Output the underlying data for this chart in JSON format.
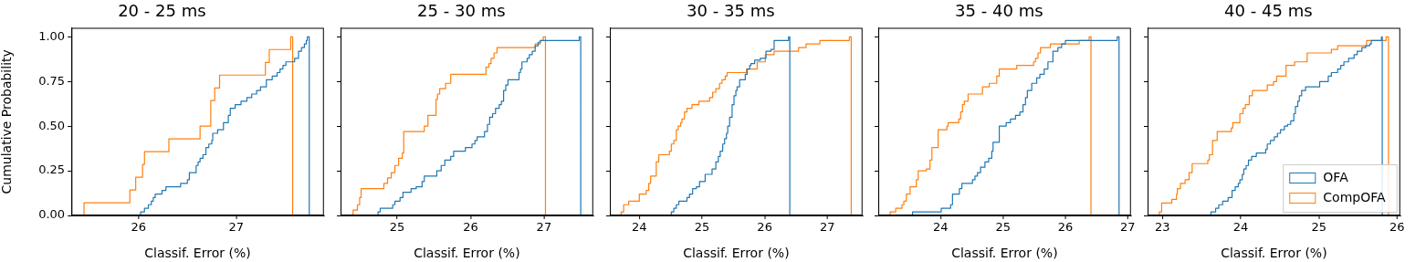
{
  "chart_data": [
    {
      "type": "step",
      "title": "20 - 25 ms",
      "xlabel": "Classif. Error (%)",
      "ylabel": "Cumulative Probability",
      "xlim": [
        25.31,
        27.9
      ],
      "xticks": [
        26,
        27
      ],
      "ylim": [
        0,
        1.05
      ],
      "yticks": [
        {
          "value": 0,
          "label": "0.00"
        },
        {
          "value": 0.25,
          "label": "0.25"
        },
        {
          "value": 0.5,
          "label": "0.50"
        },
        {
          "value": 0.75,
          "label": "0.75"
        },
        {
          "value": 1,
          "label": "1.00"
        }
      ],
      "grid": false,
      "series": [
        {
          "color": "#1f77b4",
          "x": [
            26.02,
            26.02,
            26.06,
            26.1,
            26.13,
            26.15,
            26.17,
            26.24,
            26.28,
            26.43,
            26.5,
            26.52,
            26.59,
            26.61,
            26.63,
            26.66,
            26.69,
            26.72,
            26.75,
            26.76,
            26.81,
            26.87,
            26.92,
            26.94,
            26.99,
            27.05,
            27.11,
            27.16,
            27.21,
            27.25,
            27.31,
            27.37,
            27.42,
            27.45,
            27.48,
            27.51,
            27.6,
            27.64,
            27.67,
            27.7,
            27.72,
            27.73,
            27.75
          ],
          "values": [
            0,
            0.02,
            0.04,
            0.06,
            0.08,
            0.1,
            0.12,
            0.14,
            0.16,
            0.18,
            0.2,
            0.24,
            0.28,
            0.3,
            0.32,
            0.34,
            0.38,
            0.4,
            0.42,
            0.46,
            0.48,
            0.52,
            0.56,
            0.6,
            0.62,
            0.64,
            0.66,
            0.68,
            0.7,
            0.72,
            0.76,
            0.78,
            0.8,
            0.82,
            0.84,
            0.86,
            0.88,
            0.92,
            0.94,
            0.96,
            0.98,
            1.0,
            0
          ]
        },
        {
          "color": "#ff7f0e",
          "x": [
            25.44,
            25.44,
            25.91,
            25.97,
            26.04,
            26.06,
            26.31,
            26.63,
            26.74,
            26.78,
            26.83,
            27.3,
            27.34,
            27.56,
            27.58
          ],
          "values": [
            0,
            0.071,
            0.143,
            0.214,
            0.286,
            0.357,
            0.429,
            0.5,
            0.643,
            0.714,
            0.786,
            0.857,
            0.929,
            1.0,
            0
          ]
        }
      ]
    },
    {
      "type": "step",
      "title": "25 - 30 ms",
      "xlabel": "Classif. Error (%)",
      "xlim": [
        24.23,
        27.67
      ],
      "xticks": [
        25,
        26,
        27
      ],
      "ylim": [
        0,
        1.05
      ],
      "yticks": [
        0,
        0.25,
        0.5,
        0.75,
        1
      ],
      "tick_labels": "x",
      "grid": false,
      "series": [
        {
          "color": "#1f77b4",
          "x": [
            24.74,
            24.74,
            24.77,
            24.94,
            24.97,
            25.04,
            25.08,
            25.19,
            25.26,
            25.34,
            25.37,
            25.54,
            25.6,
            25.65,
            25.73,
            25.77,
            25.93,
            26.02,
            26.06,
            26.09,
            26.19,
            26.23,
            26.26,
            26.3,
            26.34,
            26.39,
            26.42,
            26.45,
            26.48,
            26.51,
            26.66,
            26.68,
            26.7,
            26.77,
            26.8,
            26.84,
            26.88,
            26.92,
            26.95,
            27.48,
            27.5
          ],
          "values": [
            0,
            0.02,
            0.04,
            0.06,
            0.08,
            0.1,
            0.13,
            0.15,
            0.16,
            0.19,
            0.22,
            0.25,
            0.28,
            0.31,
            0.33,
            0.36,
            0.38,
            0.4,
            0.42,
            0.44,
            0.47,
            0.51,
            0.55,
            0.57,
            0.6,
            0.62,
            0.64,
            0.7,
            0.73,
            0.76,
            0.8,
            0.82,
            0.86,
            0.88,
            0.9,
            0.92,
            0.95,
            0.97,
            0.98,
            1.0,
            0
          ]
        },
        {
          "color": "#ff7f0e",
          "x": [
            24.4,
            24.4,
            24.46,
            24.49,
            24.51,
            24.82,
            24.87,
            24.92,
            24.97,
            25.02,
            25.07,
            25.09,
            25.37,
            25.42,
            25.53,
            25.55,
            25.58,
            25.66,
            25.73,
            26.21,
            26.25,
            26.28,
            26.32,
            26.36,
            26.88,
            26.95,
            26.99,
            27.02
          ],
          "values": [
            0,
            0.03,
            0.06,
            0.1,
            0.15,
            0.18,
            0.21,
            0.24,
            0.28,
            0.32,
            0.35,
            0.47,
            0.5,
            0.56,
            0.65,
            0.68,
            0.71,
            0.74,
            0.79,
            0.83,
            0.85,
            0.88,
            0.91,
            0.94,
            0.96,
            0.98,
            1.0,
            0
          ]
        }
      ]
    },
    {
      "type": "step",
      "title": "30 - 35 ms",
      "xlabel": "Classif. Error (%)",
      "xlim": [
        23.53,
        27.56
      ],
      "xticks": [
        24,
        25,
        26,
        27
      ],
      "ylim": [
        0,
        1.05
      ],
      "yticks": [
        0,
        0.25,
        0.5,
        0.75,
        1
      ],
      "tick_labels": "x",
      "grid": false,
      "series": [
        {
          "color": "#1f77b4",
          "x": [
            24.51,
            24.51,
            24.55,
            24.59,
            24.63,
            24.76,
            24.8,
            24.85,
            24.91,
            24.96,
            25.05,
            25.16,
            25.22,
            25.26,
            25.29,
            25.33,
            25.36,
            25.39,
            25.41,
            25.44,
            25.48,
            25.51,
            25.54,
            25.56,
            25.6,
            25.69,
            25.72,
            25.76,
            25.78,
            25.84,
            25.93,
            26.02,
            26.1,
            26.15,
            26.38,
            26.4
          ],
          "values": [
            0,
            0.02,
            0.04,
            0.06,
            0.08,
            0.1,
            0.12,
            0.15,
            0.16,
            0.19,
            0.23,
            0.26,
            0.3,
            0.33,
            0.36,
            0.4,
            0.43,
            0.46,
            0.5,
            0.55,
            0.62,
            0.67,
            0.7,
            0.72,
            0.76,
            0.79,
            0.82,
            0.84,
            0.85,
            0.87,
            0.88,
            0.92,
            0.93,
            0.98,
            1.0,
            0
          ]
        },
        {
          "color": "#ff7f0e",
          "x": [
            23.71,
            23.71,
            23.75,
            23.83,
            24.0,
            24.11,
            24.15,
            24.18,
            24.27,
            24.31,
            24.48,
            24.51,
            24.55,
            24.59,
            24.62,
            24.66,
            24.68,
            24.72,
            24.76,
            24.84,
            24.95,
            25.12,
            25.17,
            25.22,
            25.28,
            25.32,
            25.37,
            25.4,
            25.71,
            25.88,
            26.01,
            26.15,
            26.54,
            26.66,
            26.88,
            27.35,
            27.38
          ],
          "values": [
            0,
            0.02,
            0.06,
            0.08,
            0.12,
            0.14,
            0.18,
            0.22,
            0.3,
            0.34,
            0.36,
            0.4,
            0.42,
            0.48,
            0.5,
            0.52,
            0.54,
            0.58,
            0.6,
            0.62,
            0.64,
            0.66,
            0.69,
            0.71,
            0.74,
            0.76,
            0.78,
            0.8,
            0.82,
            0.86,
            0.9,
            0.92,
            0.94,
            0.96,
            0.98,
            1.0,
            0
          ]
        }
      ]
    },
    {
      "type": "step",
      "title": "35 - 40 ms",
      "xlabel": "Classif. Error (%)",
      "xlim": [
        23.0,
        27.05
      ],
      "xticks": [
        24,
        25,
        26,
        27
      ],
      "ylim": [
        0,
        1.05
      ],
      "yticks": [
        0,
        0.25,
        0.5,
        0.75,
        1
      ],
      "tick_labels": "x",
      "grid": false,
      "series": [
        {
          "color": "#1f77b4",
          "x": [
            23.55,
            23.55,
            24.01,
            24.16,
            24.19,
            24.3,
            24.34,
            24.51,
            24.55,
            24.59,
            24.64,
            24.71,
            24.77,
            24.82,
            24.84,
            24.94,
            25.05,
            25.12,
            25.2,
            25.27,
            25.32,
            25.36,
            25.39,
            25.46,
            25.54,
            25.59,
            25.66,
            25.72,
            25.8,
            25.88,
            25.94,
            26.0,
            26.83,
            26.86
          ],
          "values": [
            0,
            0.02,
            0.04,
            0.06,
            0.12,
            0.15,
            0.18,
            0.2,
            0.22,
            0.24,
            0.27,
            0.3,
            0.32,
            0.36,
            0.41,
            0.5,
            0.52,
            0.54,
            0.56,
            0.58,
            0.62,
            0.66,
            0.7,
            0.74,
            0.77,
            0.79,
            0.82,
            0.86,
            0.92,
            0.94,
            0.96,
            0.98,
            1.0,
            0
          ]
        },
        {
          "color": "#ff7f0e",
          "x": [
            23.19,
            23.19,
            23.28,
            23.38,
            23.41,
            23.45,
            23.51,
            23.61,
            23.64,
            23.77,
            23.83,
            23.86,
            23.96,
            24.1,
            24.12,
            24.29,
            24.32,
            24.35,
            24.38,
            24.44,
            24.67,
            24.78,
            24.9,
            24.94,
            25.22,
            25.49,
            25.52,
            25.56,
            25.6,
            25.76,
            26.22,
            26.38,
            26.41
          ],
          "values": [
            0,
            0.02,
            0.04,
            0.06,
            0.08,
            0.12,
            0.16,
            0.2,
            0.25,
            0.26,
            0.31,
            0.38,
            0.48,
            0.5,
            0.52,
            0.54,
            0.58,
            0.62,
            0.64,
            0.68,
            0.72,
            0.74,
            0.78,
            0.82,
            0.84,
            0.86,
            0.88,
            0.91,
            0.94,
            0.96,
            0.98,
            1.0,
            0
          ]
        }
      ]
    },
    {
      "type": "step",
      "title": "40 - 45 ms",
      "xlabel": "Classif. Error (%)",
      "xlim": [
        22.81,
        26.04
      ],
      "xticks": [
        23,
        24,
        25,
        26
      ],
      "ylim": [
        0,
        1.05
      ],
      "yticks": [
        0,
        0.25,
        0.5,
        0.75,
        1
      ],
      "tick_labels": "x",
      "grid": false,
      "legend": "bottom right",
      "series": [
        {
          "name": "OFA",
          "color": "#1f77b4",
          "x": [
            23.62,
            23.62,
            23.68,
            23.72,
            23.77,
            23.84,
            23.89,
            23.93,
            23.97,
            23.99,
            24.02,
            24.04,
            24.07,
            24.1,
            24.14,
            24.2,
            24.32,
            24.34,
            24.38,
            24.43,
            24.47,
            24.51,
            24.56,
            24.6,
            24.64,
            24.68,
            24.7,
            24.73,
            24.75,
            24.78,
            24.83,
            25.01,
            25.12,
            25.16,
            25.24,
            25.28,
            25.32,
            25.38,
            25.45,
            25.49,
            25.55,
            25.6,
            25.65,
            25.67,
            25.8,
            25.81
          ],
          "values": [
            0,
            0.02,
            0.04,
            0.06,
            0.08,
            0.1,
            0.14,
            0.16,
            0.18,
            0.2,
            0.23,
            0.26,
            0.28,
            0.31,
            0.33,
            0.35,
            0.37,
            0.4,
            0.42,
            0.44,
            0.46,
            0.48,
            0.5,
            0.51,
            0.53,
            0.57,
            0.61,
            0.64,
            0.67,
            0.7,
            0.72,
            0.75,
            0.78,
            0.8,
            0.82,
            0.84,
            0.86,
            0.88,
            0.9,
            0.92,
            0.94,
            0.95,
            0.96,
            0.98,
            1.0,
            0
          ]
        },
        {
          "name": "CompOFA",
          "color": "#ff7f0e",
          "x": [
            22.96,
            22.96,
            22.99,
            23.12,
            23.18,
            23.19,
            23.23,
            23.29,
            23.34,
            23.38,
            23.58,
            23.6,
            23.64,
            23.7,
            23.88,
            23.9,
            23.99,
            24.03,
            24.06,
            24.11,
            24.15,
            24.34,
            24.42,
            24.46,
            24.58,
            24.69,
            24.85,
            25.16,
            25.24,
            25.61,
            25.86,
            25.89
          ],
          "values": [
            0,
            0.02,
            0.07,
            0.09,
            0.12,
            0.15,
            0.18,
            0.2,
            0.24,
            0.29,
            0.31,
            0.34,
            0.42,
            0.47,
            0.49,
            0.52,
            0.57,
            0.6,
            0.62,
            0.67,
            0.7,
            0.73,
            0.75,
            0.78,
            0.84,
            0.86,
            0.91,
            0.93,
            0.95,
            0.98,
            1.0,
            0
          ]
        }
      ]
    }
  ]
}
